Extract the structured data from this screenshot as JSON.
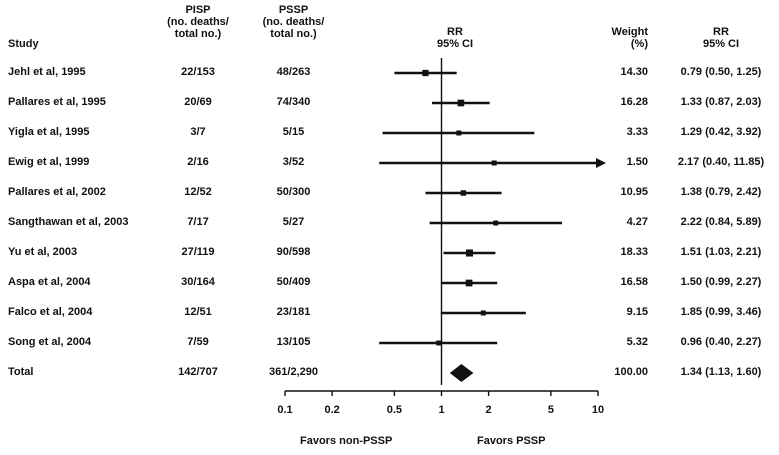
{
  "headers": {
    "study": "Study",
    "pisp": "PISP\n(no. deaths/\ntotal no.)",
    "pssp": "PSSP\n(no. deaths/\ntotal no.)",
    "rr_ci": "RR\n95% CI",
    "weight": "Weight\n(%)",
    "rr_right": "RR\n95% CI"
  },
  "footer": {
    "favors_left": "Favors non-PSSP",
    "favors_right": "Favors PSSP"
  },
  "chart_data": {
    "type": "forest",
    "scale": "log",
    "xlim": [
      0.1,
      10
    ],
    "ticks": [
      {
        "value": 0.1,
        "label": "0.1"
      },
      {
        "value": 0.2,
        "label": "0.2"
      },
      {
        "value": 0.5,
        "label": "0.5"
      },
      {
        "value": 1,
        "label": "1"
      },
      {
        "value": 2,
        "label": "2"
      },
      {
        "value": 5,
        "label": "5"
      },
      {
        "value": 10,
        "label": "10"
      }
    ],
    "studies": [
      {
        "study": "Jehl et al, 1995",
        "pisp": "22/153",
        "pssp": "48/263",
        "weight": "14.30",
        "rr_text": "0.79 (0.50, 1.25)",
        "rr": 0.79,
        "lo": 0.5,
        "hi": 1.25
      },
      {
        "study": "Pallares et al, 1995",
        "pisp": "20/69",
        "pssp": "74/340",
        "weight": "16.28",
        "rr_text": "1.33 (0.87, 2.03)",
        "rr": 1.33,
        "lo": 0.87,
        "hi": 2.03
      },
      {
        "study": "Yigla et al, 1995",
        "pisp": "3/7",
        "pssp": "5/15",
        "weight": "3.33",
        "rr_text": "1.29 (0.42, 3.92)",
        "rr": 1.29,
        "lo": 0.42,
        "hi": 3.92
      },
      {
        "study": "Ewig et al, 1999",
        "pisp": "2/16",
        "pssp": "3/52",
        "weight": "1.50",
        "rr_text": "2.17 (0.40, 11.85)",
        "rr": 2.17,
        "lo": 0.4,
        "hi": 11.85
      },
      {
        "study": "Pallares et al, 2002",
        "pisp": "12/52",
        "pssp": "50/300",
        "weight": "10.95",
        "rr_text": "1.38 (0.79, 2.42)",
        "rr": 1.38,
        "lo": 0.79,
        "hi": 2.42
      },
      {
        "study": "Sangthawan et al, 2003",
        "pisp": "7/17",
        "pssp": "5/27",
        "weight": "4.27",
        "rr_text": "2.22 (0.84, 5.89)",
        "rr": 2.22,
        "lo": 0.84,
        "hi": 5.89
      },
      {
        "study": "Yu et al, 2003",
        "pisp": "27/119",
        "pssp": "90/598",
        "weight": "18.33",
        "rr_text": "1.51 (1.03, 2.21)",
        "rr": 1.51,
        "lo": 1.03,
        "hi": 2.21
      },
      {
        "study": "Aspa et al, 2004",
        "pisp": "30/164",
        "pssp": "50/409",
        "weight": "16.58",
        "rr_text": "1.50 (0.99, 2.27)",
        "rr": 1.5,
        "lo": 0.99,
        "hi": 2.27
      },
      {
        "study": "Falco et al, 2004",
        "pisp": "12/51",
        "pssp": "23/181",
        "weight": "9.15",
        "rr_text": "1.85 (0.99, 3.46)",
        "rr": 1.85,
        "lo": 0.99,
        "hi": 3.46
      },
      {
        "study": "Song et al, 2004",
        "pisp": "7/59",
        "pssp": "13/105",
        "weight": "5.32",
        "rr_text": "0.96 (0.40, 2.27)",
        "rr": 0.96,
        "lo": 0.4,
        "hi": 2.27
      }
    ],
    "total": {
      "study": "Total",
      "pisp": "142/707",
      "pssp": "361/2,290",
      "weight": "100.00",
      "rr_text": "1.34 (1.13, 1.60)",
      "rr": 1.34,
      "lo": 1.13,
      "hi": 1.6
    }
  }
}
